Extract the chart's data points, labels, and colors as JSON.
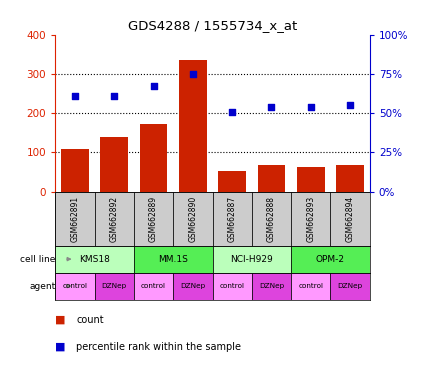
{
  "title": "GDS4288 / 1555734_x_at",
  "samples": [
    "GSM662891",
    "GSM662892",
    "GSM662889",
    "GSM662890",
    "GSM662887",
    "GSM662888",
    "GSM662893",
    "GSM662894"
  ],
  "count_values": [
    110,
    140,
    172,
    335,
    53,
    67,
    63,
    68
  ],
  "percentile_values": [
    61,
    61,
    67,
    75,
    51,
    54,
    54,
    55
  ],
  "cell_lines": [
    {
      "label": "KMS18",
      "start": 0,
      "end": 2,
      "color": "#bbffbb"
    },
    {
      "label": "MM.1S",
      "start": 2,
      "end": 4,
      "color": "#55ee55"
    },
    {
      "label": "NCI-H929",
      "start": 4,
      "end": 6,
      "color": "#bbffbb"
    },
    {
      "label": "OPM-2",
      "start": 6,
      "end": 8,
      "color": "#55ee55"
    }
  ],
  "agents": [
    "control",
    "DZNep",
    "control",
    "DZNep",
    "control",
    "DZNep",
    "control",
    "DZNep"
  ],
  "bar_color": "#cc2200",
  "dot_color": "#0000cc",
  "agent_color_control": "#ff99ff",
  "agent_color_dznep": "#dd44dd",
  "sample_bg_color": "#cccccc",
  "ylim_left": [
    0,
    400
  ],
  "ylim_right": [
    0,
    100
  ],
  "yticks_left": [
    0,
    100,
    200,
    300,
    400
  ],
  "yticks_right": [
    0,
    25,
    50,
    75,
    100
  ],
  "ytick_labels_right": [
    "0%",
    "25%",
    "50%",
    "75%",
    "100%"
  ],
  "left_axis_color": "#dd2200",
  "right_axis_color": "#0000cc"
}
